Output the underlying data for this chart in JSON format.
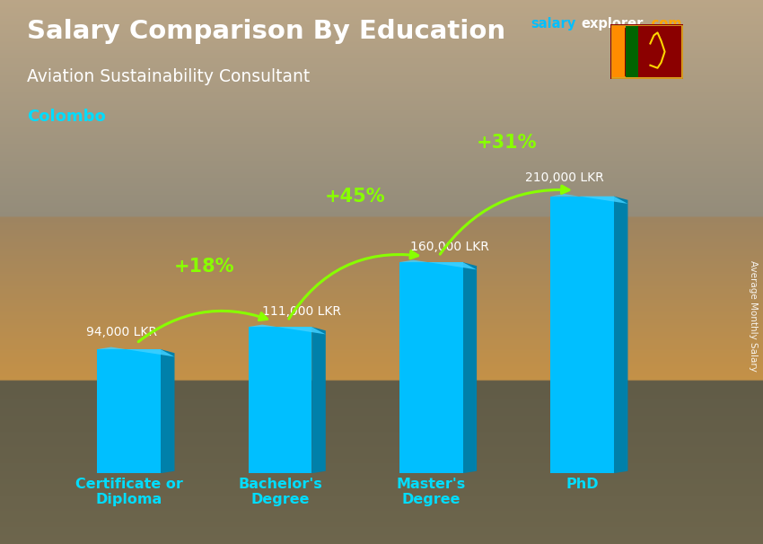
{
  "title": "Salary Comparison By Education",
  "subtitle": "Aviation Sustainability Consultant",
  "city": "Colombo",
  "ylabel": "Average Monthly Salary",
  "categories": [
    "Certificate or\nDiploma",
    "Bachelor's\nDegree",
    "Master's\nDegree",
    "PhD"
  ],
  "values": [
    94000,
    111000,
    160000,
    210000
  ],
  "value_labels": [
    "94,000 LKR",
    "111,000 LKR",
    "160,000 LKR",
    "210,000 LKR"
  ],
  "pct_changes": [
    "+18%",
    "+45%",
    "+31%"
  ],
  "bar_color_face": "#00BFFF",
  "bar_color_dark": "#0080AA",
  "bar_color_top": "#40D0FF",
  "bg_top": "#8B9090",
  "bg_bottom": "#5a5a4a",
  "title_color": "#FFFFFF",
  "subtitle_color": "#FFFFFF",
  "city_color": "#00DDFF",
  "value_color": "#FFFFFF",
  "pct_color": "#88FF00",
  "arrow_color": "#88FF00",
  "xtick_color": "#00DDFF",
  "brand_color_salary": "#00BFFF",
  "brand_color_explorer": "#FFFFFF",
  "brand_color_com": "#FFA500",
  "ylabel_color": "#FFFFFF",
  "figsize": [
    8.5,
    6.06
  ],
  "dpi": 100
}
